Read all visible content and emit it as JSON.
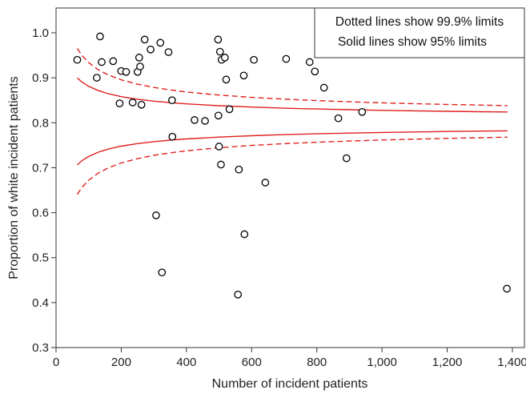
{
  "chart_data": {
    "type": "scatter",
    "title": "",
    "xlabel": "Number of incident patients",
    "ylabel": "Proportion of white incident patients",
    "xlim": [
      0,
      1400
    ],
    "ylim": [
      0.3,
      1.05
    ],
    "x_ticks": [
      0,
      200,
      400,
      600,
      800,
      1000,
      1200,
      1400
    ],
    "x_tick_labels": [
      "0",
      "200",
      "400",
      "600",
      "800",
      "1,000",
      "1,200",
      "1,400"
    ],
    "y_ticks": [
      0.3,
      0.4,
      0.5,
      0.6,
      0.7,
      0.8,
      0.9,
      1.0
    ],
    "y_tick_labels": [
      "0.3",
      "0.4",
      "0.5",
      "0.6",
      "0.7",
      "0.8",
      "0.9",
      "1.0"
    ],
    "grid": false,
    "legend_position": "top-right",
    "legend_lines": [
      "Dotted lines show 99.9% limits",
      "Solid lines show 95% limits"
    ],
    "colors": {
      "points": "#000000",
      "limits": "#e02020"
    },
    "points": [
      [
        65,
        0.94
      ],
      [
        125,
        0.9
      ],
      [
        135,
        0.992
      ],
      [
        140,
        0.935
      ],
      [
        175,
        0.937
      ],
      [
        195,
        0.843
      ],
      [
        200,
        0.915
      ],
      [
        215,
        0.913
      ],
      [
        235,
        0.845
      ],
      [
        250,
        0.913
      ],
      [
        255,
        0.945
      ],
      [
        258,
        0.925
      ],
      [
        262,
        0.84
      ],
      [
        272,
        0.985
      ],
      [
        290,
        0.963
      ],
      [
        307,
        0.594
      ],
      [
        320,
        0.978
      ],
      [
        325,
        0.467
      ],
      [
        345,
        0.957
      ],
      [
        356,
        0.85
      ],
      [
        357,
        0.769
      ],
      [
        425,
        0.806
      ],
      [
        457,
        0.804
      ],
      [
        497,
        0.985
      ],
      [
        498,
        0.816
      ],
      [
        500,
        0.747
      ],
      [
        503,
        0.958
      ],
      [
        506,
        0.707
      ],
      [
        508,
        0.94
      ],
      [
        518,
        0.945
      ],
      [
        522,
        0.896
      ],
      [
        532,
        0.83
      ],
      [
        558,
        0.418
      ],
      [
        561,
        0.696
      ],
      [
        576,
        0.905
      ],
      [
        578,
        0.552
      ],
      [
        607,
        0.94
      ],
      [
        642,
        0.667
      ],
      [
        706,
        0.942
      ],
      [
        778,
        0.935
      ],
      [
        794,
        0.914
      ],
      [
        822,
        0.878
      ],
      [
        866,
        0.81
      ],
      [
        891,
        0.721
      ],
      [
        939,
        0.824
      ],
      [
        1383,
        0.431
      ]
    ],
    "center": 0.803,
    "n_values": [
      65,
      80,
      100,
      130,
      160,
      200,
      250,
      300,
      350,
      400,
      500,
      600,
      700,
      800,
      900,
      1000,
      1100,
      1200,
      1300,
      1385
    ],
    "z_95": 1.96,
    "z_999": 3.29
  }
}
